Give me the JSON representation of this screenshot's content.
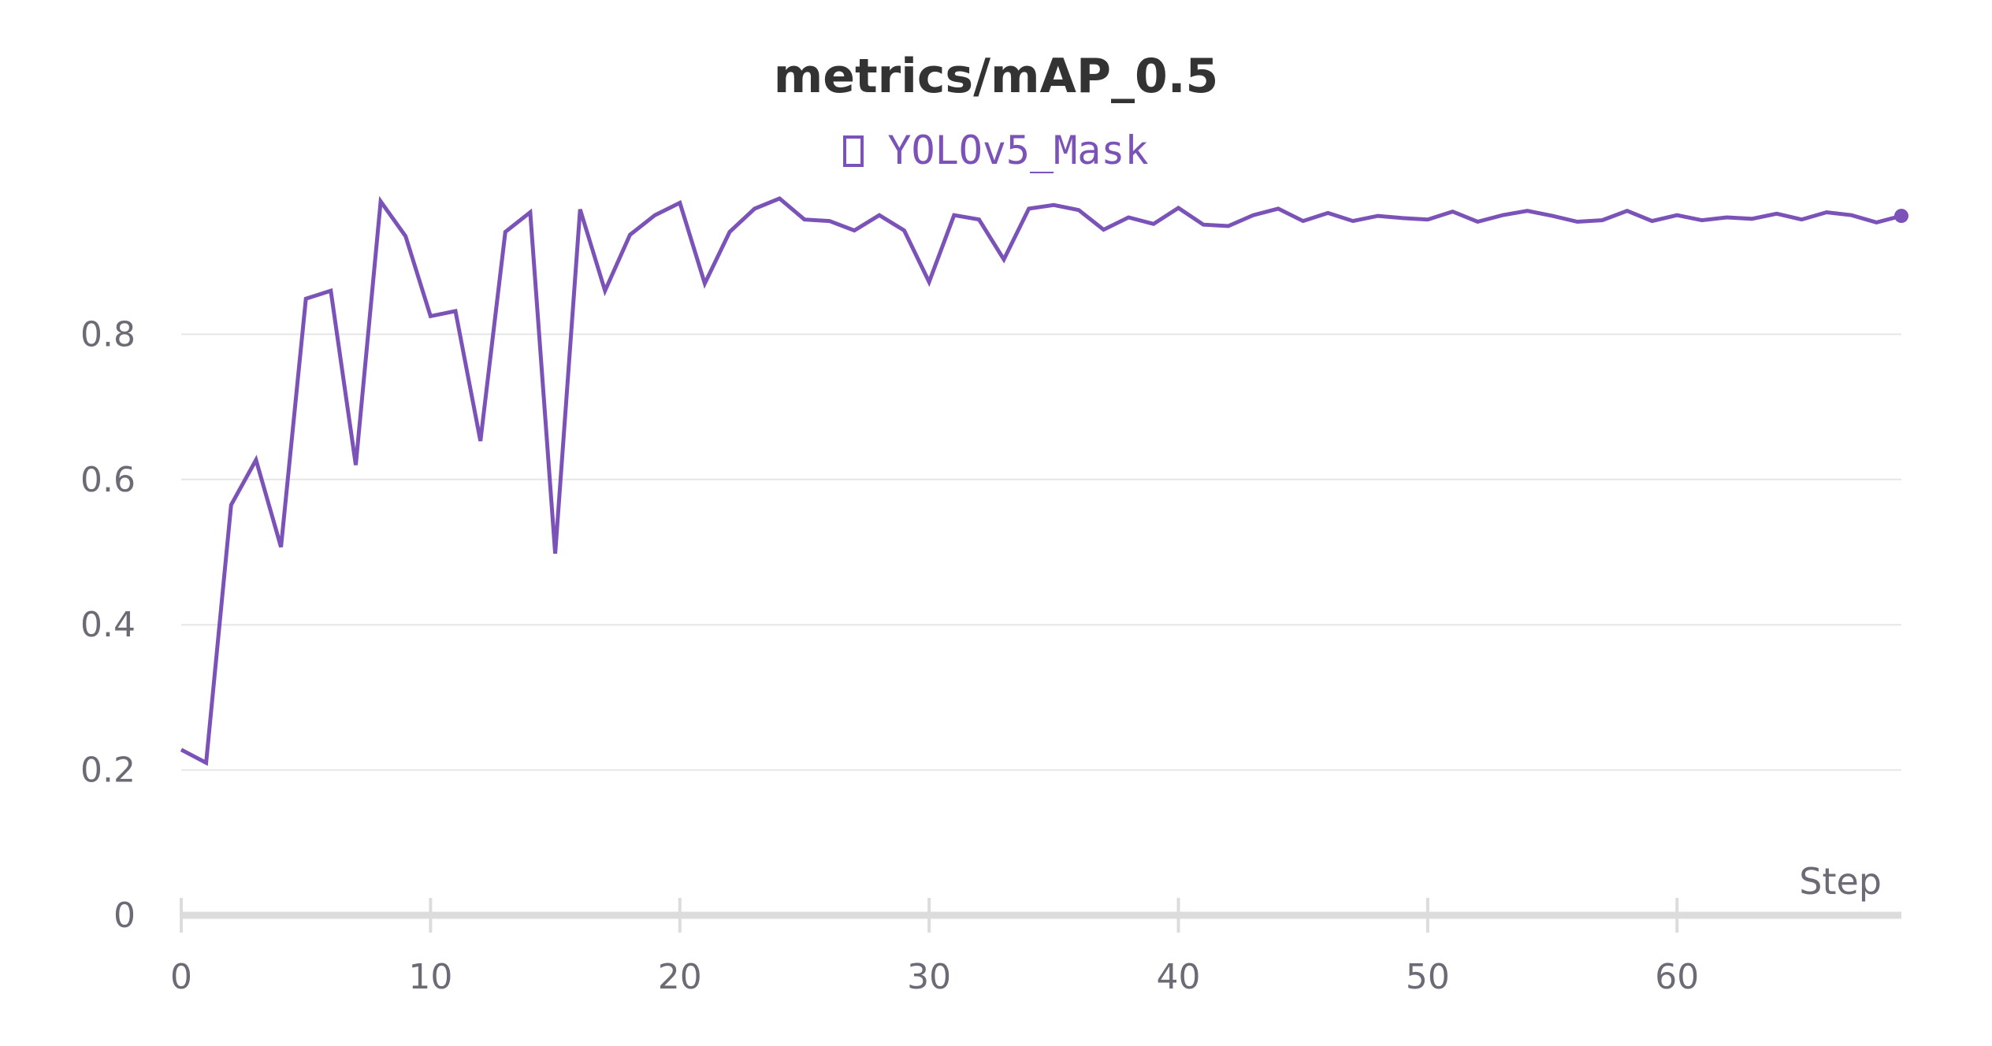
{
  "colors": {
    "series": "#7b52b8",
    "grid": "#e6e6e6",
    "axis": "#dcdcdc",
    "text": "#6b6b76",
    "title": "#333333"
  },
  "chart_data": {
    "type": "line",
    "title": "metrics/mAP_0.5",
    "xlabel": "Step",
    "ylabel": "",
    "xlim": [
      0,
      69
    ],
    "ylim": [
      0,
      1.0
    ],
    "x_ticks": [
      0,
      10,
      20,
      30,
      40,
      50,
      60
    ],
    "y_ticks": [
      0,
      0.2,
      0.4,
      0.6,
      0.8
    ],
    "x_tick_labels": [
      "0",
      "10",
      "20",
      "30",
      "40",
      "50",
      "60"
    ],
    "y_tick_labels": [
      "0",
      "0.2",
      "0.4",
      "0.6",
      "0.8"
    ],
    "grid": true,
    "legend_position": "top-center",
    "series": [
      {
        "name": "YOLOv5_Mask",
        "color": "#7b52b8",
        "x": [
          0,
          1,
          2,
          3,
          4,
          5,
          6,
          7,
          8,
          9,
          10,
          11,
          12,
          13,
          14,
          15,
          16,
          17,
          18,
          19,
          20,
          21,
          22,
          23,
          24,
          25,
          26,
          27,
          28,
          29,
          30,
          31,
          32,
          33,
          34,
          35,
          36,
          37,
          38,
          39,
          40,
          41,
          42,
          43,
          44,
          45,
          46,
          47,
          48,
          49,
          50,
          51,
          52,
          53,
          54,
          55,
          56,
          57,
          58,
          59,
          60,
          61,
          62,
          63,
          64,
          65,
          66,
          67,
          68,
          69
        ],
        "y": [
          0.228,
          0.21,
          0.565,
          0.627,
          0.507,
          0.849,
          0.86,
          0.62,
          0.983,
          0.935,
          0.825,
          0.832,
          0.653,
          0.941,
          0.968,
          0.498,
          0.972,
          0.86,
          0.937,
          0.964,
          0.981,
          0.87,
          0.941,
          0.973,
          0.987,
          0.958,
          0.956,
          0.943,
          0.964,
          0.943,
          0.872,
          0.964,
          0.958,
          0.903,
          0.973,
          0.978,
          0.971,
          0.944,
          0.961,
          0.952,
          0.974,
          0.951,
          0.949,
          0.964,
          0.973,
          0.956,
          0.967,
          0.956,
          0.963,
          0.96,
          0.958,
          0.969,
          0.955,
          0.964,
          0.97,
          0.963,
          0.955,
          0.957,
          0.97,
          0.956,
          0.964,
          0.957,
          0.961,
          0.959,
          0.966,
          0.958,
          0.968,
          0.964,
          0.954,
          0.963
        ]
      }
    ]
  }
}
